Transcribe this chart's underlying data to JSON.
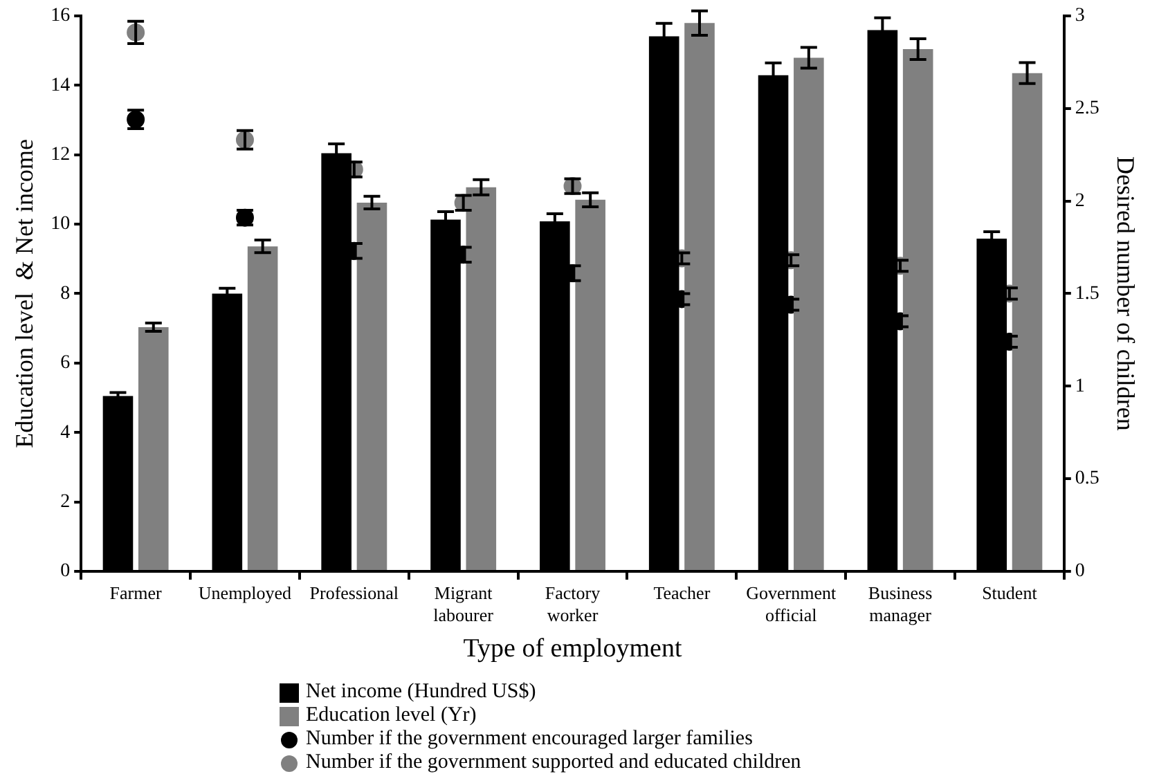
{
  "chart_data": {
    "type": "bar",
    "xlabel": "Type of employment",
    "ylabel": "Education level  & Net income",
    "y2label": "Desired number of children",
    "categories": [
      "Farmer",
      "Unemployed",
      "Professional",
      "Migrant labourer",
      "Factory worker",
      "Teacher",
      "Government official",
      "Business manager",
      "Student"
    ],
    "series": [
      {
        "name": "Net income (Hundred US$)",
        "color": "#000000",
        "values": [
          5.05,
          8.0,
          12.04,
          10.13,
          10.08,
          15.41,
          14.29,
          15.59,
          9.58
        ],
        "errors": [
          0.1,
          0.15,
          0.27,
          0.23,
          0.22,
          0.37,
          0.35,
          0.35,
          0.2
        ]
      },
      {
        "name": "Education level (Yr)",
        "color": "#808080",
        "values": [
          7.03,
          9.36,
          10.62,
          11.06,
          10.7,
          15.79,
          14.79,
          15.04,
          14.35
        ],
        "errors": [
          0.12,
          0.18,
          0.18,
          0.22,
          0.2,
          0.35,
          0.3,
          0.3,
          0.3
        ]
      },
      {
        "name": "Number if the government encouraged larger families",
        "type": "scatter",
        "axis": "y2",
        "color": "#000000",
        "values": [
          2.44,
          1.91,
          1.73,
          1.71,
          1.61,
          1.47,
          1.44,
          1.35,
          1.24
        ],
        "errors": [
          0.05,
          0.04,
          0.04,
          0.04,
          0.04,
          0.03,
          0.03,
          0.03,
          0.03
        ]
      },
      {
        "name": "Number if the government supported and educated children",
        "type": "scatter",
        "axis": "y2",
        "color": "#808080",
        "values": [
          2.91,
          2.33,
          2.17,
          1.99,
          2.08,
          1.69,
          1.68,
          1.65,
          1.5
        ],
        "errors": [
          0.06,
          0.05,
          0.04,
          0.04,
          0.04,
          0.03,
          0.03,
          0.03,
          0.03
        ]
      }
    ],
    "ylim": [
      0,
      16
    ],
    "yticks": [
      0,
      2,
      4,
      6,
      8,
      10,
      12,
      14,
      16
    ],
    "y2lim": [
      0,
      3
    ],
    "y2ticks": [
      0,
      0.5,
      1,
      1.5,
      2,
      2.5,
      3
    ],
    "grid": false,
    "legend": "bottom",
    "marker": "circle"
  }
}
